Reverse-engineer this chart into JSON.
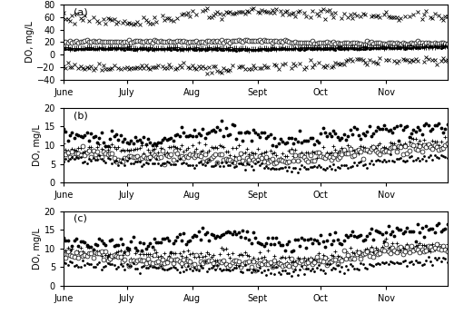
{
  "title_a": "(a)",
  "title_b": "(b)",
  "title_c": "(c)",
  "ylabel": "DO, mg/L",
  "xlabels": [
    "June",
    "July",
    "Aug",
    "Sept",
    "Oct",
    "Nov"
  ],
  "ylim_a": [
    -40,
    80
  ],
  "ylim_bc": [
    0,
    20
  ],
  "yticks_a": [
    -40,
    -20,
    0,
    20,
    40,
    60,
    80
  ],
  "yticks_bc": [
    0,
    5,
    10,
    15,
    20
  ],
  "n_days": 183,
  "xtick_positions": [
    0,
    30,
    61,
    92,
    122,
    153
  ],
  "figsize": [
    5.0,
    3.46
  ],
  "dpi": 100
}
